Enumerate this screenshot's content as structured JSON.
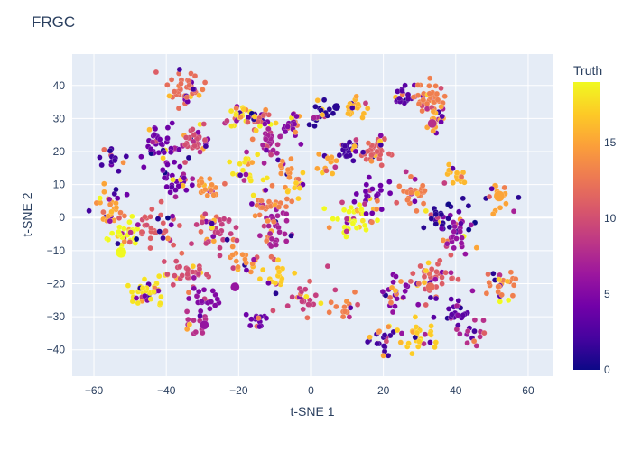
{
  "chart_data": {
    "type": "scatter",
    "title": "FRGC",
    "xlabel": "t-SNE 1",
    "ylabel": "t-SNE 2",
    "xlim": [
      -66,
      67
    ],
    "ylim": [
      -48,
      49.5
    ],
    "x_ticks": [
      -60,
      -40,
      -20,
      0,
      20,
      40,
      60
    ],
    "y_ticks": [
      -40,
      -30,
      -20,
      -10,
      0,
      10,
      20,
      30,
      40
    ],
    "grid": true,
    "colorbar": {
      "title": "Truth",
      "range": [
        0,
        19
      ],
      "ticks": [
        0,
        5,
        10,
        15
      ],
      "colorscale": "plasma"
    },
    "seed": 7,
    "clusters": [
      {
        "x": -35,
        "y": 39,
        "truth": 12,
        "n": 45,
        "spread": 4
      },
      {
        "x": -20,
        "y": 31,
        "truth": 18,
        "n": 25,
        "spread": 3
      },
      {
        "x": -15,
        "y": 30,
        "truth": 11,
        "n": 25,
        "spread": 3
      },
      {
        "x": -42,
        "y": 23,
        "truth": 4,
        "n": 40,
        "spread": 5
      },
      {
        "x": -32,
        "y": 23,
        "truth": 10,
        "n": 35,
        "spread": 4
      },
      {
        "x": -12,
        "y": 22,
        "truth": 7,
        "n": 30,
        "spread": 4
      },
      {
        "x": -5,
        "y": 28,
        "truth": 5,
        "n": 25,
        "spread": 3
      },
      {
        "x": 3,
        "y": 31,
        "truth": 1,
        "n": 25,
        "spread": 3
      },
      {
        "x": 12,
        "y": 34,
        "truth": 16,
        "n": 20,
        "spread": 3
      },
      {
        "x": 25,
        "y": 37,
        "truth": 3,
        "n": 20,
        "spread": 3
      },
      {
        "x": 33,
        "y": 36,
        "truth": 13,
        "n": 35,
        "spread": 4
      },
      {
        "x": 35,
        "y": 30,
        "truth": 15,
        "n": 20,
        "spread": 3
      },
      {
        "x": 18,
        "y": 20,
        "truth": 11,
        "n": 35,
        "spread": 4
      },
      {
        "x": 10,
        "y": 20,
        "truth": 2,
        "n": 25,
        "spread": 3
      },
      {
        "x": -18,
        "y": 14,
        "truth": 18,
        "n": 20,
        "spread": 4
      },
      {
        "x": -6,
        "y": 15,
        "truth": 14,
        "n": 15,
        "spread": 3
      },
      {
        "x": 4,
        "y": 16,
        "truth": 15,
        "n": 15,
        "spread": 3
      },
      {
        "x": -55,
        "y": 18,
        "truth": 2,
        "n": 15,
        "spread": 3
      },
      {
        "x": -37,
        "y": 11,
        "truth": 4,
        "n": 30,
        "spread": 4
      },
      {
        "x": -28,
        "y": 9,
        "truth": 14,
        "n": 20,
        "spread": 3
      },
      {
        "x": -55,
        "y": 3,
        "truth": 15,
        "n": 30,
        "spread": 4
      },
      {
        "x": -52,
        "y": -5,
        "truth": 19,
        "n": 30,
        "spread": 4
      },
      {
        "x": -43,
        "y": -3,
        "truth": 11,
        "n": 35,
        "spread": 5
      },
      {
        "x": -27,
        "y": -4,
        "truth": 9,
        "n": 40,
        "spread": 5
      },
      {
        "x": -12,
        "y": 3,
        "truth": 13,
        "n": 30,
        "spread": 4
      },
      {
        "x": -10,
        "y": -4,
        "truth": 7,
        "n": 30,
        "spread": 4
      },
      {
        "x": -3,
        "y": 10,
        "truth": 17,
        "n": 10,
        "spread": 3
      },
      {
        "x": 12,
        "y": 0,
        "truth": 19,
        "n": 40,
        "spread": 5
      },
      {
        "x": 17,
        "y": 6,
        "truth": 4,
        "n": 25,
        "spread": 4
      },
      {
        "x": 28,
        "y": 7,
        "truth": 13,
        "n": 25,
        "spread": 4
      },
      {
        "x": 38,
        "y": 0,
        "truth": 1,
        "n": 35,
        "spread": 5
      },
      {
        "x": 41,
        "y": 13,
        "truth": 16,
        "n": 20,
        "spread": 3
      },
      {
        "x": 52,
        "y": 5,
        "truth": 15,
        "n": 15,
        "spread": 3
      },
      {
        "x": 40,
        "y": -6,
        "truth": 6,
        "n": 25,
        "spread": 3
      },
      {
        "x": -45,
        "y": -22,
        "truth": 18,
        "n": 40,
        "spread": 4
      },
      {
        "x": -35,
        "y": -17,
        "truth": 10,
        "n": 30,
        "spread": 4
      },
      {
        "x": -28,
        "y": -25,
        "truth": 5,
        "n": 20,
        "spread": 4
      },
      {
        "x": -20,
        "y": -14,
        "truth": 14,
        "n": 20,
        "spread": 4
      },
      {
        "x": -10,
        "y": -18,
        "truth": 17,
        "n": 20,
        "spread": 4
      },
      {
        "x": -15,
        "y": -32,
        "truth": 4,
        "n": 15,
        "spread": 3
      },
      {
        "x": -32,
        "y": -33,
        "truth": 8,
        "n": 15,
        "spread": 3
      },
      {
        "x": 0,
        "y": -25,
        "truth": 9,
        "n": 25,
        "spread": 4
      },
      {
        "x": 10,
        "y": -27,
        "truth": 13,
        "n": 15,
        "spread": 3
      },
      {
        "x": 23,
        "y": -22,
        "truth": 5,
        "n": 25,
        "spread": 4
      },
      {
        "x": 33,
        "y": -18,
        "truth": 11,
        "n": 40,
        "spread": 5
      },
      {
        "x": 40,
        "y": -28,
        "truth": 3,
        "n": 25,
        "spread": 4
      },
      {
        "x": 52,
        "y": -20,
        "truth": 13,
        "n": 25,
        "spread": 4
      },
      {
        "x": 20,
        "y": -36,
        "truth": 2,
        "n": 25,
        "spread": 4
      },
      {
        "x": 30,
        "y": -36,
        "truth": 17,
        "n": 30,
        "spread": 4
      },
      {
        "x": 44,
        "y": -35,
        "truth": 8,
        "n": 15,
        "spread": 3
      }
    ],
    "highlights": [
      {
        "x": -52.5,
        "y": -10.5,
        "truth": 19,
        "size": 6
      },
      {
        "x": 52,
        "y": 6.5,
        "truth": 15,
        "size": 6
      },
      {
        "x": -29.5,
        "y": -32.5,
        "truth": 6,
        "size": 5
      },
      {
        "x": -21,
        "y": -21,
        "truth": 6,
        "size": 5
      },
      {
        "x": 7,
        "y": 33.5,
        "truth": 1,
        "size": 4.5
      },
      {
        "x": 33,
        "y": -21,
        "truth": 12,
        "size": 5
      },
      {
        "x": 33.5,
        "y": 28.5,
        "truth": 8,
        "size": 5
      }
    ]
  }
}
